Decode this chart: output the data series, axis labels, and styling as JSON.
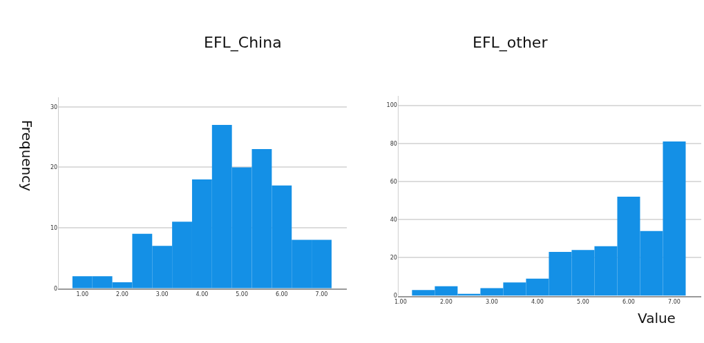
{
  "chart_data": [
    {
      "type": "histogram",
      "title": "EFL_China",
      "ylabel": "Frequency",
      "color": "#1490e6",
      "bins": [
        0.75,
        1.25,
        1.75,
        2.25,
        2.75,
        3.25,
        3.75,
        4.25,
        4.75,
        5.25,
        5.75,
        6.25,
        6.75,
        7.25
      ],
      "values": [
        2,
        2,
        1,
        9,
        7,
        11,
        18,
        27,
        20,
        23,
        17,
        8,
        8
      ],
      "xlim": [
        0.39,
        7.63
      ],
      "ylim": [
        0,
        31.6
      ],
      "xticks": [
        {
          "value": 1,
          "label": "1.00"
        },
        {
          "value": 2,
          "label": "2.00"
        },
        {
          "value": 3,
          "label": "3.00"
        },
        {
          "value": 4,
          "label": "4.00"
        },
        {
          "value": 5,
          "label": "5.00"
        },
        {
          "value": 6,
          "label": "6.00"
        },
        {
          "value": 7,
          "label": "7.00"
        }
      ],
      "yticks": [
        0,
        10,
        20,
        30
      ],
      "grid": "y"
    },
    {
      "type": "histogram",
      "title": "EFL_other",
      "xlabel": "Value",
      "color": "#1490e6",
      "bins": [
        1.25,
        1.75,
        2.25,
        2.75,
        3.25,
        3.75,
        4.25,
        4.75,
        5.25,
        5.75,
        6.25,
        6.75,
        7.25
      ],
      "values": [
        3,
        5,
        1,
        4,
        7,
        9,
        23,
        24,
        26,
        52,
        34,
        81
      ],
      "xlim": [
        0.94,
        7.59
      ],
      "ylim": [
        0,
        105
      ],
      "xticks": [
        {
          "value": 1,
          "label": "1.00"
        },
        {
          "value": 2,
          "label": "2.00"
        },
        {
          "value": 3,
          "label": "3.00"
        },
        {
          "value": 4,
          "label": "4.00"
        },
        {
          "value": 5,
          "label": "5.00"
        },
        {
          "value": 6,
          "label": "6.00"
        },
        {
          "value": 7,
          "label": "7.00"
        }
      ],
      "yticks": [
        0,
        20,
        40,
        60,
        80,
        100
      ],
      "grid": "y"
    }
  ]
}
